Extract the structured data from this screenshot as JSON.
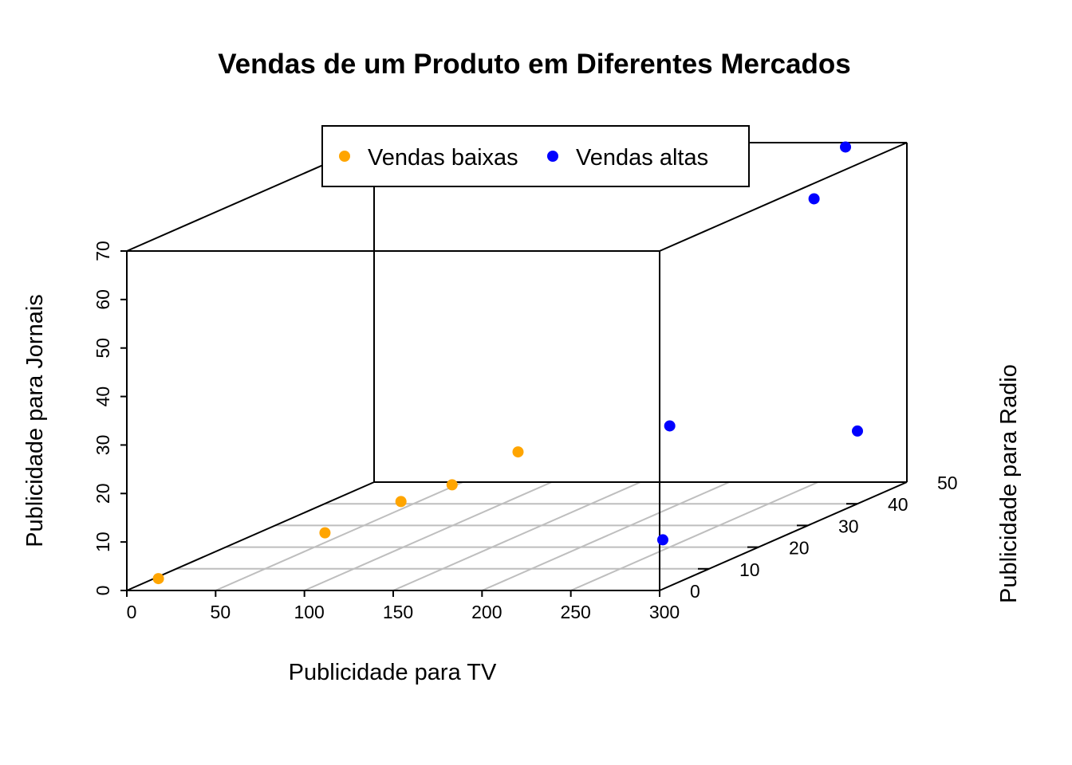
{
  "chart_data": {
    "type": "scatter3d",
    "title": "Vendas de um Produto em Diferentes Mercados",
    "xlabel": "Publicidade para TV",
    "ylabel": "Publicidade para Radio",
    "zlabel": "Publicidade para Jornais",
    "xlim": [
      0,
      300
    ],
    "ylim": [
      0,
      50
    ],
    "zlim": [
      0,
      70
    ],
    "x_ticks": [
      0,
      50,
      100,
      150,
      200,
      250,
      300
    ],
    "y_ticks": [
      0,
      10,
      20,
      30,
      40,
      50
    ],
    "z_ticks": [
      0,
      10,
      20,
      30,
      40,
      50,
      60,
      70
    ],
    "grid": true,
    "legend_position": "top",
    "series": [
      {
        "name": "Vendas baixas",
        "color": "#FFA500",
        "points": [
          {
            "x": 15,
            "y": 1,
            "z": 2
          },
          {
            "x": 106,
            "y": 2,
            "z": 11
          },
          {
            "x": 146,
            "y": 3,
            "z": 17
          },
          {
            "x": 172,
            "y": 4,
            "z": 20
          },
          {
            "x": 198,
            "y": 8,
            "z": 25
          }
        ]
      },
      {
        "name": "Vendas altas",
        "color": "#0000FF",
        "points": [
          {
            "x": 299,
            "y": 1,
            "z": 10
          },
          {
            "x": 250,
            "y": 20,
            "z": 25
          },
          {
            "x": 300,
            "y": 40,
            "z": 15
          },
          {
            "x": 270,
            "y": 42,
            "z": 62
          },
          {
            "x": 271,
            "y": 48,
            "z": 70
          }
        ]
      }
    ]
  }
}
